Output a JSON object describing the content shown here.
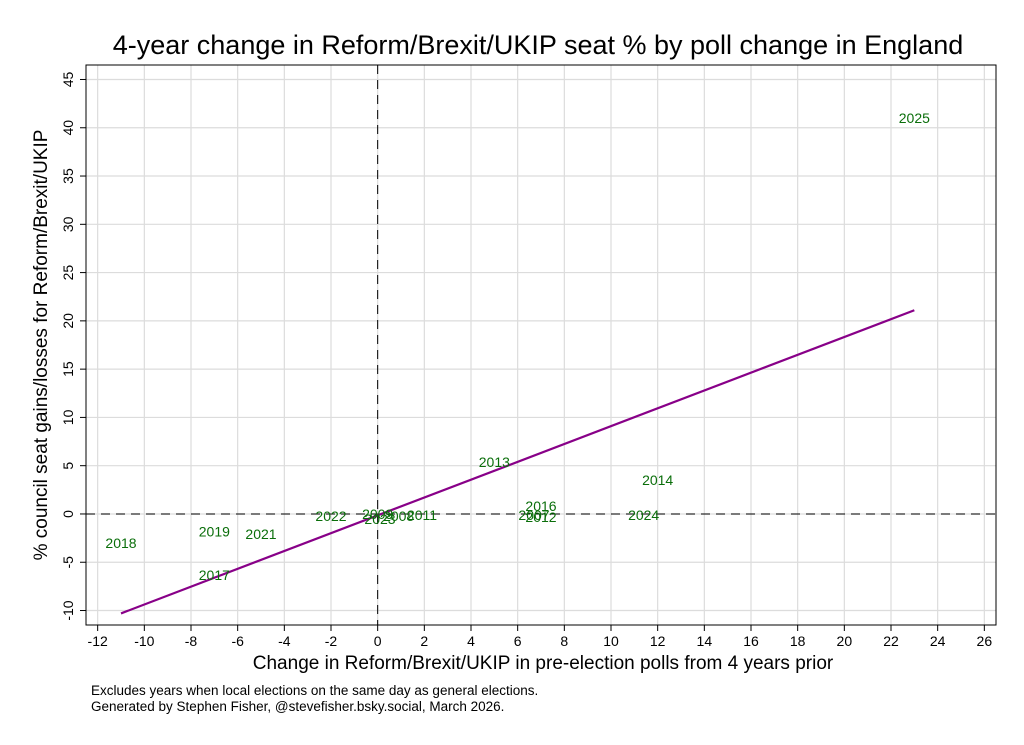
{
  "chart_data": {
    "type": "scatter",
    "title": "4-year change in Reform/Brexit/UKIP seat % by poll change in England",
    "xlabel": "Change in Reform/Brexit/UKIP in pre-election polls from 4 years prior",
    "ylabel": "% council seat gains/losses for Reform/Brexit/UKIP",
    "xlim": [
      -12.5,
      26.5
    ],
    "ylim": [
      -11.5,
      46.5
    ],
    "xticks": [
      -12,
      -10,
      -8,
      -6,
      -4,
      -2,
      0,
      2,
      4,
      6,
      8,
      10,
      12,
      14,
      16,
      18,
      20,
      22,
      24,
      26
    ],
    "yticks": [
      -10,
      -5,
      0,
      5,
      10,
      15,
      20,
      25,
      30,
      35,
      40,
      45
    ],
    "grid": true,
    "reference_lines": {
      "x": 0,
      "y": 0,
      "style": "dashed"
    },
    "point_color": "#0a6e0a",
    "marker": "year-label",
    "points": [
      {
        "label": "2025",
        "x": 23.0,
        "y": 41.0
      },
      {
        "label": "2013",
        "x": 5.0,
        "y": 5.4
      },
      {
        "label": "2014",
        "x": 12.0,
        "y": 3.5
      },
      {
        "label": "2016",
        "x": 7.0,
        "y": 0.8
      },
      {
        "label": "2007",
        "x": 6.7,
        "y": -0.1
      },
      {
        "label": "2012",
        "x": 7.0,
        "y": -0.3
      },
      {
        "label": "2024",
        "x": 11.4,
        "y": -0.1
      },
      {
        "label": "2011",
        "x": 1.9,
        "y": -0.1
      },
      {
        "label": "2008",
        "x": 0.9,
        "y": -0.2
      },
      {
        "label": "2009",
        "x": 0.0,
        "y": 0.0
      },
      {
        "label": "2023",
        "x": 0.1,
        "y": -0.5
      },
      {
        "label": "2022",
        "x": -2.0,
        "y": -0.2
      },
      {
        "label": "2021",
        "x": -5.0,
        "y": -2.1
      },
      {
        "label": "2019",
        "x": -7.0,
        "y": -1.8
      },
      {
        "label": "2018",
        "x": -11.0,
        "y": -3.0
      },
      {
        "label": "2017",
        "x": -7.0,
        "y": -6.3
      }
    ],
    "fit_line": {
      "color": "#880088",
      "x": [
        -11.0,
        23.0
      ],
      "y": [
        -10.3,
        21.1
      ]
    }
  },
  "notes": [
    "Excludes years when local elections on the same day as general elections.",
    "Generated by Stephen Fisher, @stevefisher.bsky.social, March 2026."
  ]
}
